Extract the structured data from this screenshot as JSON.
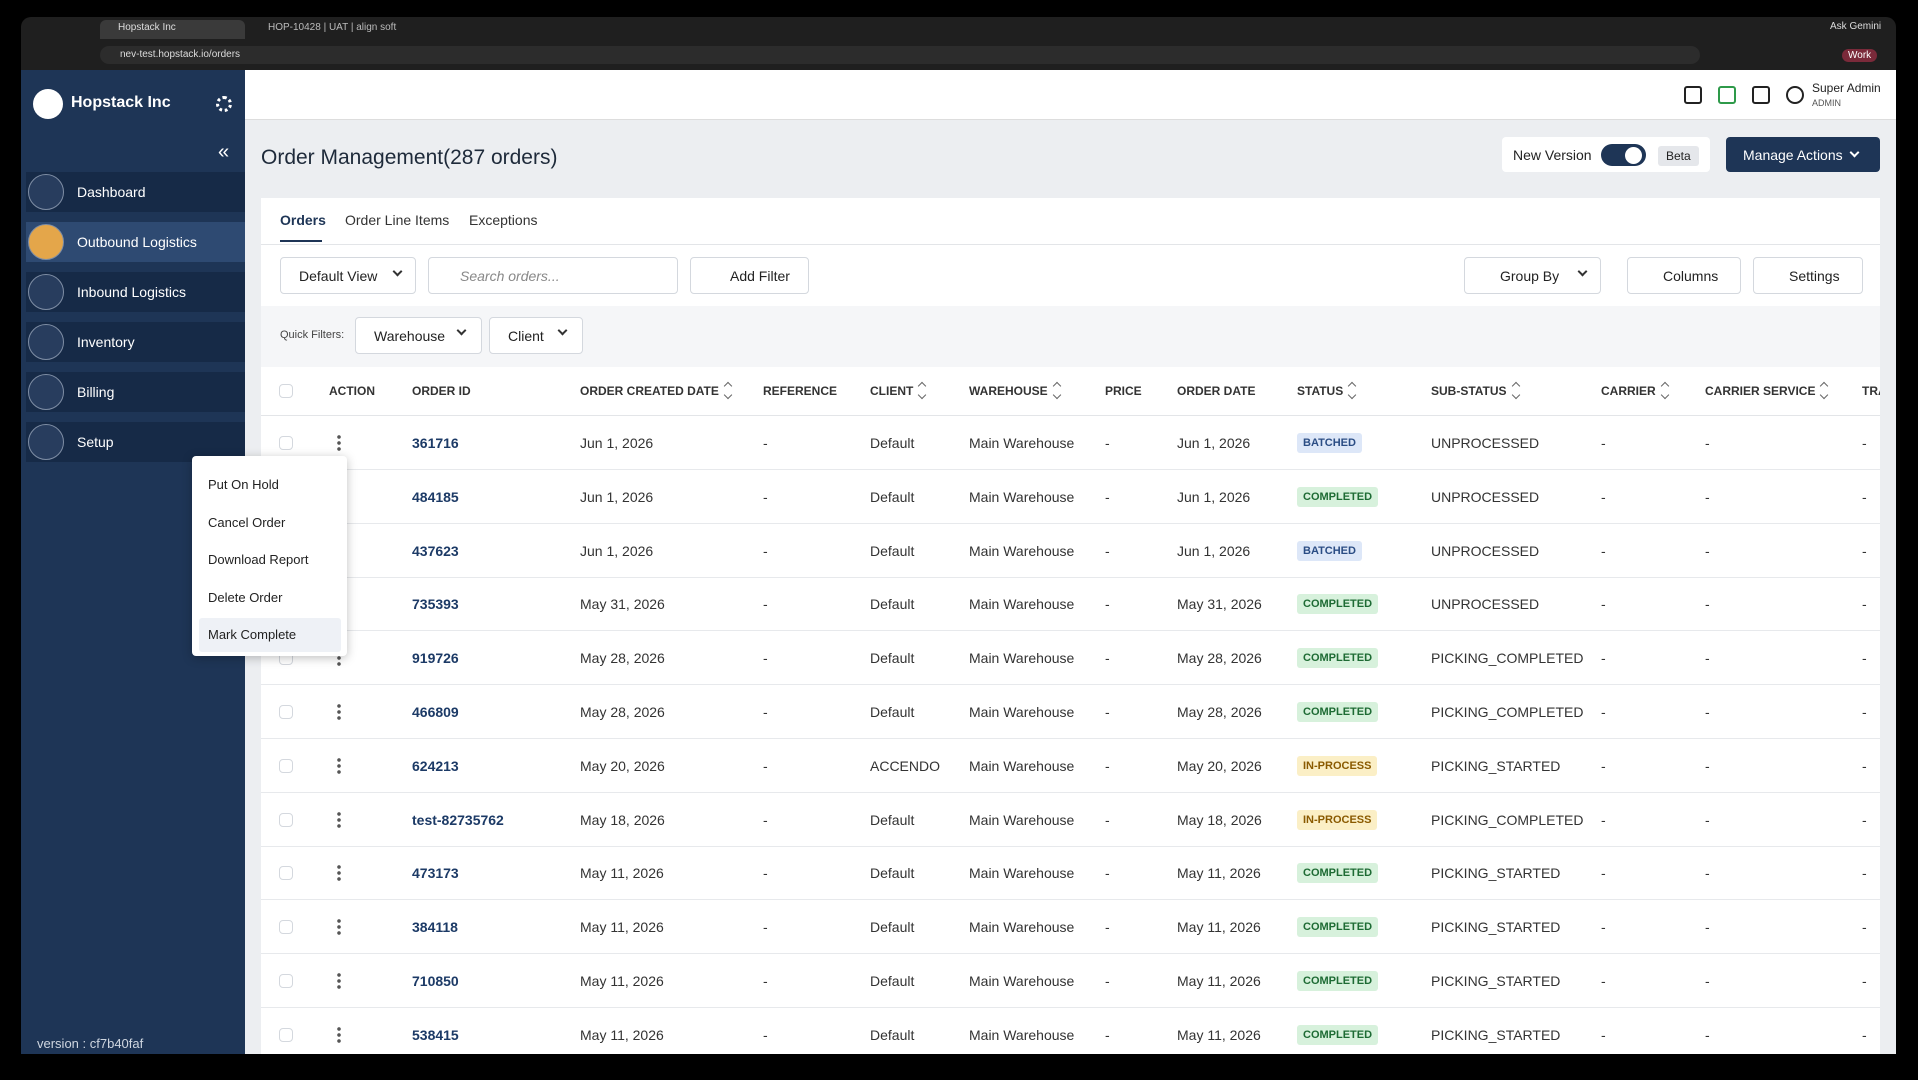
{
  "browser": {
    "tabs": [
      "Hopstack Inc",
      "HOP-10428 | UAT | align soft"
    ],
    "url": "nev-test.hopstack.io/orders",
    "ask": "Ask Gemini",
    "profile": "Work"
  },
  "sidebar": {
    "brand": "Hopstack Inc",
    "nav": [
      "Dashboard",
      "Outbound Logistics",
      "Inbound Logistics",
      "Inventory",
      "Billing",
      "Setup"
    ],
    "version": "version : cf7b40faf"
  },
  "header": {
    "user_name": "Super Admin",
    "user_role": "ADMIN"
  },
  "page": {
    "title": "Order Management(287 orders)",
    "new_version": "New Version",
    "beta": "Beta",
    "manage_actions": "Manage Actions"
  },
  "tabs": [
    "Orders",
    "Order Line Items",
    "Exceptions"
  ],
  "toolbar": {
    "default_view": "Default View",
    "search_placeholder": "Search orders...",
    "add_filter": "Add Filter",
    "group_by": "Group By",
    "columns": "Columns",
    "settings": "Settings"
  },
  "quick_filters": {
    "label": "Quick Filters:",
    "filters": [
      "Warehouse",
      "Client"
    ]
  },
  "table": {
    "columns": [
      {
        "label": "ACTION",
        "sortable": false
      },
      {
        "label": "ORDER ID",
        "sortable": false
      },
      {
        "label": "ORDER CREATED DATE",
        "sortable": true
      },
      {
        "label": "REFERENCE",
        "sortable": false
      },
      {
        "label": "CLIENT",
        "sortable": true
      },
      {
        "label": "WAREHOUSE",
        "sortable": true
      },
      {
        "label": "PRICE",
        "sortable": false
      },
      {
        "label": "ORDER DATE",
        "sortable": false
      },
      {
        "label": "STATUS",
        "sortable": true
      },
      {
        "label": "SUB-STATUS",
        "sortable": true
      },
      {
        "label": "CARRIER",
        "sortable": true
      },
      {
        "label": "CARRIER SERVICE",
        "sortable": true
      },
      {
        "label": "TRA",
        "sortable": false
      }
    ],
    "rows": [
      [
        "361716",
        "Jun 1, 2026",
        "-",
        "Default",
        "Main Warehouse",
        "-",
        "Jun 1, 2026",
        "BATCHED",
        "UNPROCESSED",
        "-",
        "-",
        "-"
      ],
      [
        "484185",
        "Jun 1, 2026",
        "-",
        "Default",
        "Main Warehouse",
        "-",
        "Jun 1, 2026",
        "COMPLETED",
        "UNPROCESSED",
        "-",
        "-",
        "-"
      ],
      [
        "437623",
        "Jun 1, 2026",
        "-",
        "Default",
        "Main Warehouse",
        "-",
        "Jun 1, 2026",
        "BATCHED",
        "UNPROCESSED",
        "-",
        "-",
        "-"
      ],
      [
        "735393",
        "May 31, 2026",
        "-",
        "Default",
        "Main Warehouse",
        "-",
        "May 31, 2026",
        "COMPLETED",
        "UNPROCESSED",
        "-",
        "-",
        "-"
      ],
      [
        "919726",
        "May 28, 2026",
        "-",
        "Default",
        "Main Warehouse",
        "-",
        "May 28, 2026",
        "COMPLETED",
        "PICKING_COMPLETED",
        "-",
        "-",
        "-"
      ],
      [
        "466809",
        "May 28, 2026",
        "-",
        "Default",
        "Main Warehouse",
        "-",
        "May 28, 2026",
        "COMPLETED",
        "PICKING_COMPLETED",
        "-",
        "-",
        "-"
      ],
      [
        "624213",
        "May 20, 2026",
        "-",
        "ACCENDO",
        "Main Warehouse",
        "-",
        "May 20, 2026",
        "IN-PROCESS",
        "PICKING_STARTED",
        "-",
        "-",
        "-"
      ],
      [
        "test-82735762",
        "May 18, 2026",
        "-",
        "Default",
        "Main Warehouse",
        "-",
        "May 18, 2026",
        "IN-PROCESS",
        "PICKING_COMPLETED",
        "-",
        "-",
        "-"
      ],
      [
        "473173",
        "May 11, 2026",
        "-",
        "Default",
        "Main Warehouse",
        "-",
        "May 11, 2026",
        "COMPLETED",
        "PICKING_STARTED",
        "-",
        "-",
        "-"
      ],
      [
        "384118",
        "May 11, 2026",
        "-",
        "Default",
        "Main Warehouse",
        "-",
        "May 11, 2026",
        "COMPLETED",
        "PICKING_STARTED",
        "-",
        "-",
        "-"
      ],
      [
        "710850",
        "May 11, 2026",
        "-",
        "Default",
        "Main Warehouse",
        "-",
        "May 11, 2026",
        "COMPLETED",
        "PICKING_STARTED",
        "-",
        "-",
        "-"
      ],
      [
        "538415",
        "May 11, 2026",
        "-",
        "Default",
        "Main Warehouse",
        "-",
        "May 11, 2026",
        "COMPLETED",
        "PICKING_STARTED",
        "-",
        "-",
        "-"
      ]
    ]
  },
  "context_menu": {
    "items": [
      "Put On Hold",
      "Cancel Order",
      "Download Report",
      "Delete Order",
      "Mark Complete"
    ]
  }
}
